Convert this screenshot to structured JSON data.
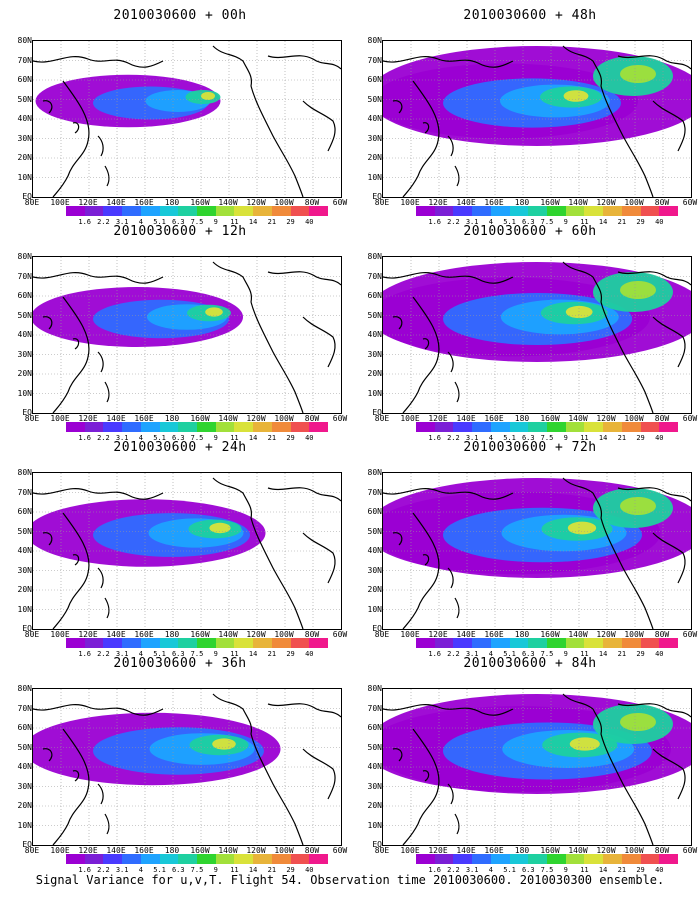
{
  "panels": [
    {
      "title": "2010030600 + 00h"
    },
    {
      "title": "2010030600 + 12h"
    },
    {
      "title": "2010030600 + 24h"
    },
    {
      "title": "2010030600 + 36h"
    },
    {
      "title": "2010030600 + 48h"
    },
    {
      "title": "2010030600 + 60h"
    },
    {
      "title": "2010030600 + 72h"
    },
    {
      "title": "2010030600 + 84h"
    }
  ],
  "lat_labels": [
    "80N",
    "70N",
    "60N",
    "50N",
    "40N",
    "30N",
    "20N",
    "10N",
    "EQ"
  ],
  "lon_labels": [
    "80E",
    "100E",
    "120E",
    "140E",
    "160E",
    "180",
    "160W",
    "140W",
    "120W",
    "100W",
    "80W",
    "60W"
  ],
  "colorbar": {
    "labels": [
      "1.6",
      "2.2",
      "3.1",
      "4",
      "5.1",
      "6.3",
      "7.5",
      "9",
      "11",
      "14",
      "21",
      "29",
      "40"
    ],
    "colors": [
      "#9b00d3",
      "#7b1fd6",
      "#4a3aff",
      "#2f6cff",
      "#1ea3ff",
      "#18c8d8",
      "#1ed0a0",
      "#2fd42f",
      "#a2e03a",
      "#d9e23a",
      "#e8b43a",
      "#f08a3a",
      "#f05050",
      "#f0188c"
    ]
  },
  "caption": "Signal Variance for u,v,T. Flight 54. Observation time 2010030600. 2010030300 ensemble."
}
